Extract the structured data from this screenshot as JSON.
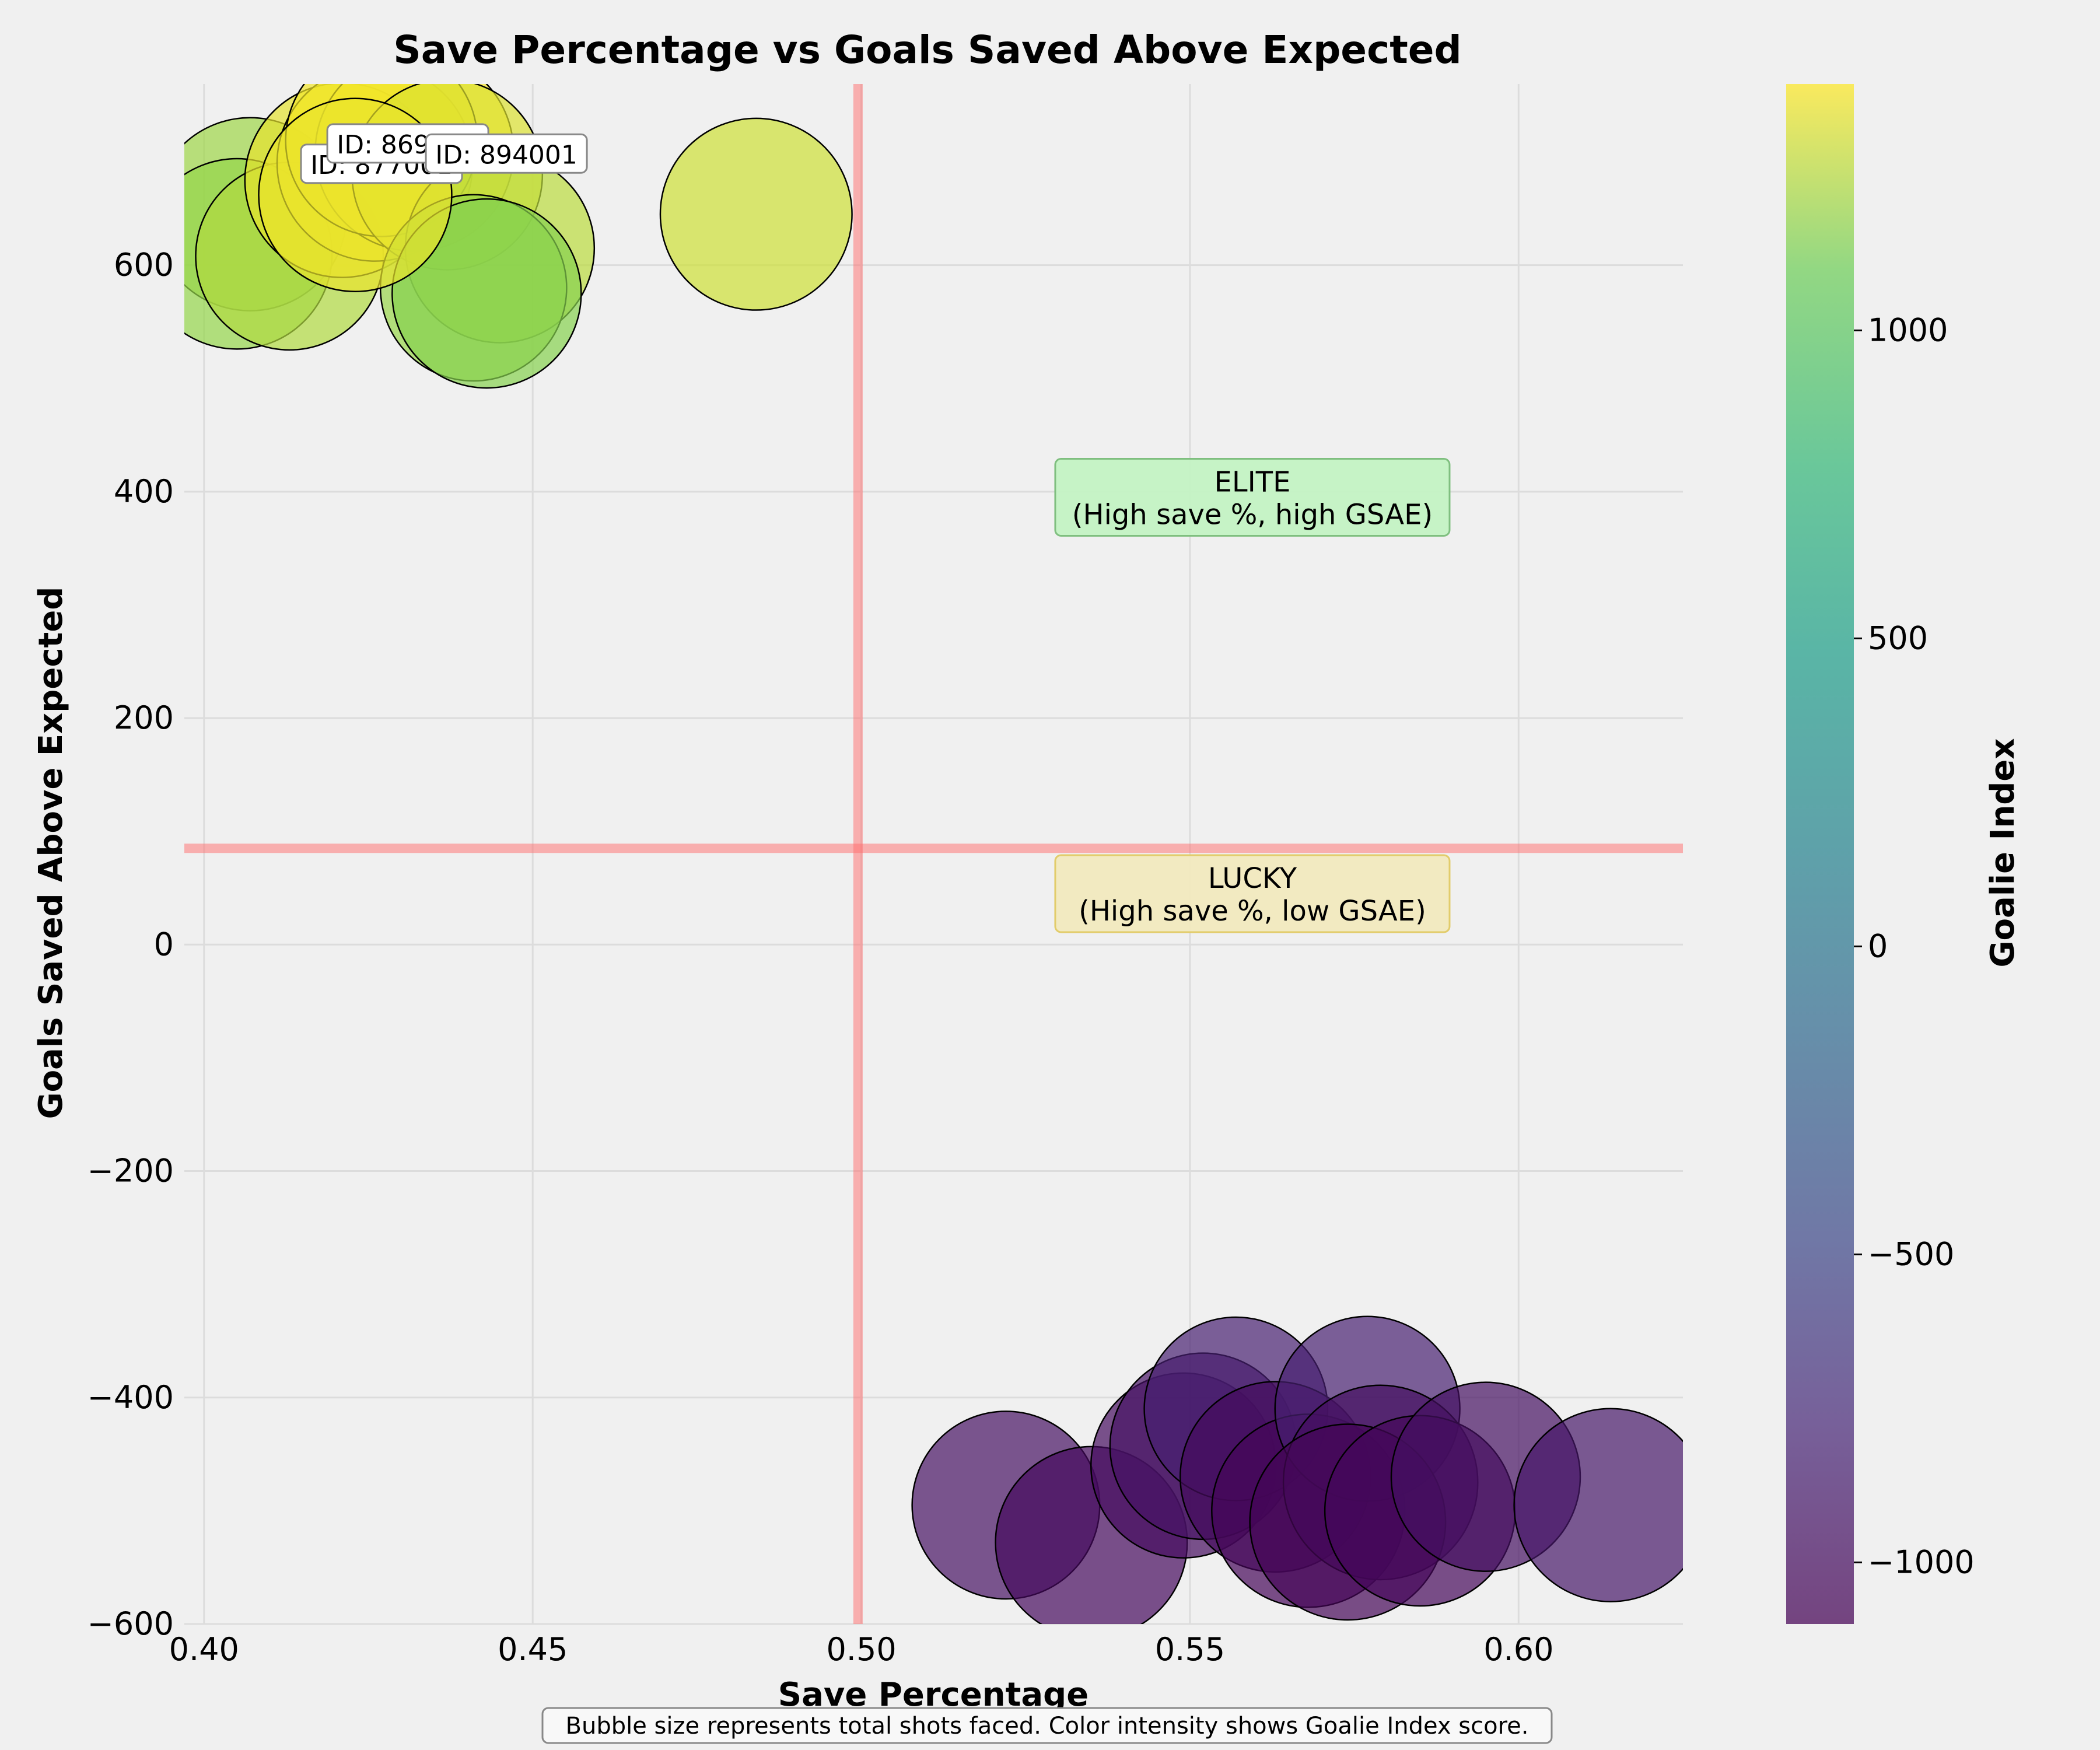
{
  "chart_data": {
    "type": "scatter",
    "title": "Save Percentage vs Goals Saved Above Expected",
    "xlabel": "Save Percentage",
    "ylabel": "Goals Saved Above Expected",
    "xlim": [
      0.397,
      0.625
    ],
    "ylim": [
      -600,
      760
    ],
    "xticks": [
      0.4,
      0.45,
      0.5,
      0.55,
      0.6
    ],
    "xtick_labels": [
      "0.40",
      "0.45",
      "0.50",
      "0.55",
      "0.60"
    ],
    "yticks": [
      -600,
      -400,
      -200,
      0,
      200,
      400,
      600
    ],
    "ytick_labels": [
      "−600",
      "−400",
      "−200",
      "0",
      "200",
      "400",
      "600"
    ],
    "grid": true,
    "reference_lines": {
      "x": 0.4995,
      "y": 85
    },
    "colorbar": {
      "label": "Goalie Index",
      "range": [
        -1100,
        1400
      ],
      "ticks": [
        1000,
        500,
        0,
        -500,
        -1000
      ],
      "tick_labels": [
        "1000",
        "500",
        "0",
        "−500",
        "−1000"
      ],
      "colormap": "viridis"
    },
    "points": [
      {
        "x": 0.407,
        "y": 645,
        "shots": 7200,
        "index": 1200
      },
      {
        "x": 0.405,
        "y": 610,
        "shots": 7000,
        "index": 1180
      },
      {
        "x": 0.413,
        "y": 608,
        "shots": 6800,
        "index": 1240
      },
      {
        "x": 0.421,
        "y": 675,
        "shots": 7300,
        "index": 1350
      },
      {
        "x": 0.426,
        "y": 690,
        "shots": 7400,
        "index": 1370
      },
      {
        "x": 0.432,
        "y": 700,
        "shots": 7600,
        "index": 1385
      },
      {
        "x": 0.427,
        "y": 710,
        "shots": 7100,
        "index": 1375
      },
      {
        "x": 0.437,
        "y": 680,
        "shots": 7000,
        "index": 1330
      },
      {
        "x": 0.445,
        "y": 615,
        "shots": 6900,
        "index": 1260
      },
      {
        "x": 0.441,
        "y": 580,
        "shots": 6700,
        "index": 1190
      },
      {
        "x": 0.443,
        "y": 575,
        "shots": 6900,
        "index": 1150
      },
      {
        "x": 0.423,
        "y": 662,
        "shots": 7200,
        "index": 1360
      },
      {
        "x": 0.484,
        "y": 645,
        "shots": 7100,
        "index": 1300
      },
      {
        "x": 0.522,
        "y": -495,
        "shots": 6800,
        "index": -970
      },
      {
        "x": 0.535,
        "y": -528,
        "shots": 7100,
        "index": -1030
      },
      {
        "x": 0.549,
        "y": -460,
        "shots": 6600,
        "index": -1010
      },
      {
        "x": 0.552,
        "y": -443,
        "shots": 6700,
        "index": -960
      },
      {
        "x": 0.557,
        "y": -410,
        "shots": 6500,
        "index": -850
      },
      {
        "x": 0.563,
        "y": -470,
        "shots": 7000,
        "index": -1020
      },
      {
        "x": 0.568,
        "y": -500,
        "shots": 7200,
        "index": -1060
      },
      {
        "x": 0.577,
        "y": -410,
        "shots": 6600,
        "index": -850
      },
      {
        "x": 0.579,
        "y": -475,
        "shots": 7300,
        "index": -990
      },
      {
        "x": 0.574,
        "y": -510,
        "shots": 7400,
        "index": -1070
      },
      {
        "x": 0.585,
        "y": -500,
        "shots": 7000,
        "index": -1050
      },
      {
        "x": 0.595,
        "y": -470,
        "shots": 6900,
        "index": -980
      },
      {
        "x": 0.614,
        "y": -495,
        "shots": 7200,
        "index": -920
      }
    ],
    "annotations": [
      {
        "text": "ID: 877001",
        "x": 0.427,
        "y": 688
      },
      {
        "text": "ID: 869001",
        "x": 0.431,
        "y": 706
      },
      {
        "text": "ID: 894001",
        "x": 0.446,
        "y": 697
      }
    ],
    "quadrant_labels": [
      {
        "lines": [
          "ELITE",
          "(High save %, high GSAE)"
        ],
        "x": 0.5595,
        "y": 395,
        "fill": "#c3f2c3",
        "stroke": "#7fbf7f"
      },
      {
        "lines": [
          "LUCKY",
          "(High save %, low GSAE)"
        ],
        "x": 0.5595,
        "y": 45,
        "fill": "#f1e9be",
        "stroke": "#e2cc6a"
      }
    ],
    "caption": "Bubble size represents total shots faced. Color intensity shows Goalie Index score."
  }
}
